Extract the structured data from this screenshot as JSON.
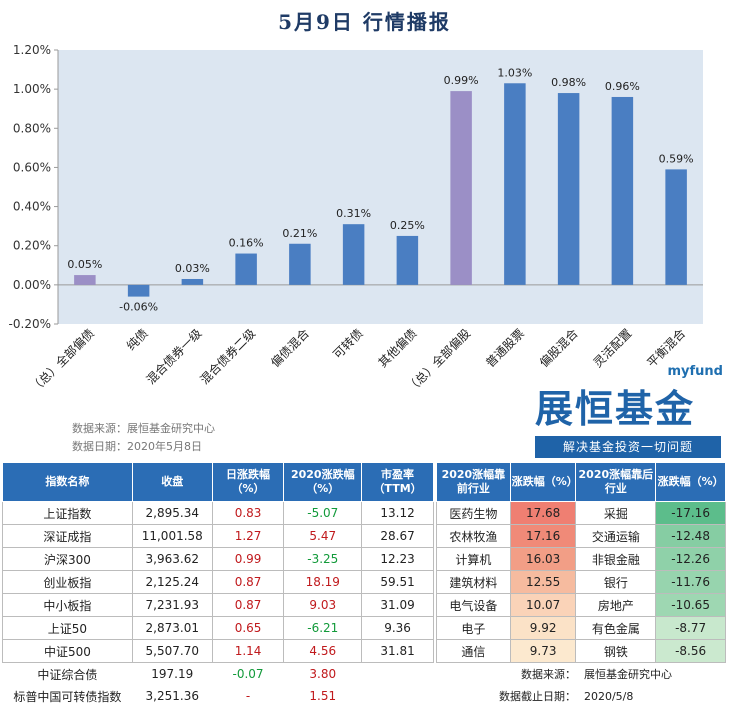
{
  "title": "5月9日  行情播报",
  "chart_data": {
    "type": "bar",
    "categories": [
      "（总）全部偏债",
      "纯债",
      "混合债券一级",
      "混合债券二级",
      "偏债混合",
      "可转债",
      "其他偏债",
      "（总）全部偏股",
      "普通股票",
      "偏股混合",
      "灵活配置",
      "平衡混合"
    ],
    "values": [
      0.05,
      -0.06,
      0.03,
      0.16,
      0.21,
      0.31,
      0.25,
      0.99,
      1.03,
      0.98,
      0.96,
      0.59
    ],
    "value_labels": [
      "0.05%",
      "-0.06%",
      "0.03%",
      "0.16%",
      "0.21%",
      "0.31%",
      "0.25%",
      "0.99%",
      "1.03%",
      "0.98%",
      "0.96%",
      "0.59%"
    ],
    "highlight": [
      true,
      false,
      false,
      false,
      false,
      false,
      false,
      true,
      false,
      false,
      false,
      false
    ],
    "ylim": [
      -0.2,
      1.2
    ],
    "yticks": [
      -0.2,
      0.0,
      0.2,
      0.4,
      0.6,
      0.8,
      1.0,
      1.2
    ],
    "ytick_labels": [
      "-0.20%",
      "0.00%",
      "0.20%",
      "0.40%",
      "0.60%",
      "0.80%",
      "1.00%",
      "1.20%"
    ],
    "colors": {
      "bar": "#4a7ec2",
      "highlight": "#9b8fc6",
      "plot_bg": "#dce6f1"
    }
  },
  "source": {
    "line1": "数据来源：展恒基金研究中心",
    "line2": "数据日期：2020年5月8日"
  },
  "logo": {
    "sub": "myfund",
    "main": "展恒基金",
    "slogan": "解决基金投资一切问题"
  },
  "index_table": {
    "headers": [
      "指数名称",
      "收盘",
      "日涨跌幅（%）",
      "2020涨跌幅（%）",
      "市盈率（TTM）"
    ],
    "rows": [
      {
        "name": "上证指数",
        "close": "2,895.34",
        "day": "0.83",
        "ytd": "-5.07",
        "pe": "13.12"
      },
      {
        "name": "深证成指",
        "close": "11,001.58",
        "day": "1.27",
        "ytd": "5.47",
        "pe": "28.67"
      },
      {
        "name": "沪深300",
        "close": "3,963.62",
        "day": "0.99",
        "ytd": "-3.25",
        "pe": "12.23"
      },
      {
        "name": "创业板指",
        "close": "2,125.24",
        "day": "0.87",
        "ytd": "18.19",
        "pe": "59.51"
      },
      {
        "name": "中小板指",
        "close": "7,231.93",
        "day": "0.87",
        "ytd": "9.03",
        "pe": "31.09"
      },
      {
        "name": "上证50",
        "close": "2,873.01",
        "day": "0.65",
        "ytd": "-6.21",
        "pe": "9.36"
      },
      {
        "name": "中证500",
        "close": "5,507.70",
        "day": "1.14",
        "ytd": "4.56",
        "pe": "31.81"
      },
      {
        "name": "中证综合债",
        "close": "197.19",
        "day": "-0.07",
        "ytd": "3.80",
        "pe": ""
      },
      {
        "name": "标普中国可转债指数",
        "close": "3,251.36",
        "day": "-",
        "ytd": "1.51",
        "pe": ""
      }
    ]
  },
  "sector_table": {
    "headers": [
      "2020涨幅靠前行业",
      "涨跌幅（%）",
      "2020涨幅靠后行业",
      "涨跌幅（%）"
    ],
    "rows": [
      {
        "top": "医药生物",
        "top_v": "17.68",
        "bot": "采掘",
        "bot_v": "-17.16"
      },
      {
        "top": "农林牧渔",
        "top_v": "17.16",
        "bot": "交通运输",
        "bot_v": "-12.48"
      },
      {
        "top": "计算机",
        "top_v": "16.03",
        "bot": "非银金融",
        "bot_v": "-12.26"
      },
      {
        "top": "建筑材料",
        "top_v": "12.55",
        "bot": "银行",
        "bot_v": "-11.76"
      },
      {
        "top": "电气设备",
        "top_v": "10.07",
        "bot": "房地产",
        "bot_v": "-10.65"
      },
      {
        "top": "电子",
        "top_v": "9.92",
        "bot": "有色金属",
        "bot_v": "-8.77"
      },
      {
        "top": "通信",
        "top_v": "9.73",
        "bot": "钢铁",
        "bot_v": "-8.56"
      }
    ],
    "top_colors": [
      "#ef7f72",
      "#f08a78",
      "#f29e86",
      "#f6bb9f",
      "#fad3b8",
      "#fbe2c7",
      "#fce9cf"
    ],
    "bot_colors": [
      "#5cbd8b",
      "#86cda3",
      "#8fd1a9",
      "#97d4ae",
      "#9ed7b2",
      "#c8e8cd",
      "#cbe9cf"
    ],
    "source_label": "数据来源：",
    "source_value": "展恒基金研究中心",
    "date_label": "数据截止日期：",
    "date_value": "2020/5/8"
  }
}
